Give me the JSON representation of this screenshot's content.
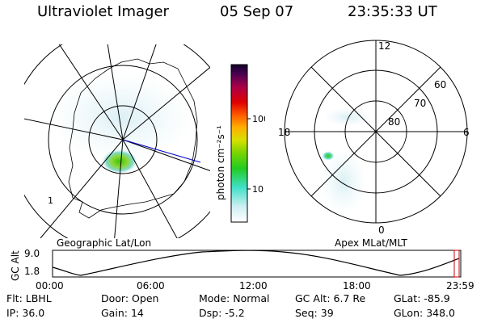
{
  "header": {
    "title": "Ultraviolet Imager",
    "date": "05 Sep 07",
    "time": "23:35:33 UT"
  },
  "colorbar": {
    "unit_label": "photon cm⁻²s⁻¹",
    "ticks": [
      "100",
      "10"
    ]
  },
  "left_panel": {
    "caption": "Geographic Lat/Lon",
    "corner_label": "1"
  },
  "right_panel": {
    "caption": "Apex MLat/MLT",
    "mlt_labels": {
      "top": "12",
      "right": "6",
      "left": "18",
      "bottom": "0"
    },
    "lat_labels": [
      "60",
      "70",
      "80"
    ]
  },
  "orbit": {
    "ylabel": "GC Alt",
    "yticks": [
      "9.0",
      "1.8"
    ],
    "xticks": [
      "00:00",
      "06:00",
      "12:00",
      "18:00",
      "23:59"
    ]
  },
  "meta": [
    [
      {
        "k": "Flt:",
        "v": "LBHL"
      },
      {
        "k": "IP:",
        "v": "36.0"
      }
    ],
    [
      {
        "k": "Door:",
        "v": "Open"
      },
      {
        "k": "Gain:",
        "v": "14"
      }
    ],
    [
      {
        "k": "Mode:",
        "v": "Normal"
      },
      {
        "k": "Dsp:",
        "v": "-5.2"
      }
    ],
    [
      {
        "k": "GC Alt:",
        "v": "6.7 Re"
      },
      {
        "k": "Seq:",
        "v": "39"
      }
    ],
    [
      {
        "k": "GLat:",
        "v": "-85.9"
      },
      {
        "k": "GLon:",
        "v": "348.0"
      }
    ]
  ],
  "colors": {
    "line": "#000000",
    "track": "#0000cc",
    "marker": "#cc0000"
  }
}
